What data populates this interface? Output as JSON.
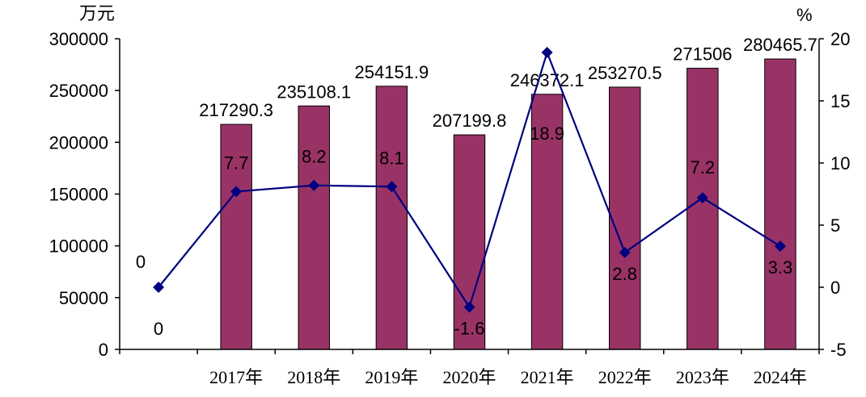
{
  "chart_data": {
    "type": "bar",
    "left_unit": "万元",
    "right_unit": "%",
    "categories": [
      "",
      "2017年",
      "2018年",
      "2019年",
      "2020年",
      "2021年",
      "2022年",
      "2023年",
      "2024年"
    ],
    "bar_values": [
      0,
      217290.3,
      235108.1,
      254151.9,
      207199.8,
      246372.1,
      253270.5,
      271506,
      280465.7
    ],
    "bar_labels": [
      "0",
      "217290.3",
      "235108.1",
      "254151.9",
      "207199.8",
      "246372.1",
      "253270.5",
      "271506",
      "280465.7"
    ],
    "line_values": [
      0,
      7.7,
      8.2,
      8.1,
      -1.6,
      18.9,
      2.8,
      7.2,
      3.3
    ],
    "line_labels": [
      "0",
      "7.7",
      "8.2",
      "8.1",
      "-1.6",
      "18.9",
      "2.8",
      "7.2",
      "3.3"
    ],
    "left_axis": {
      "min": 0,
      "max": 300000,
      "ticks": [
        "0",
        "50000",
        "100000",
        "150000",
        "200000",
        "250000",
        "300000"
      ]
    },
    "right_axis": {
      "min": -5,
      "max": 20,
      "ticks": [
        "-5",
        "0",
        "5",
        "10",
        "15",
        "20"
      ]
    },
    "colors": {
      "bar": "#993366",
      "line": "#000080",
      "axis": "#000000"
    }
  }
}
